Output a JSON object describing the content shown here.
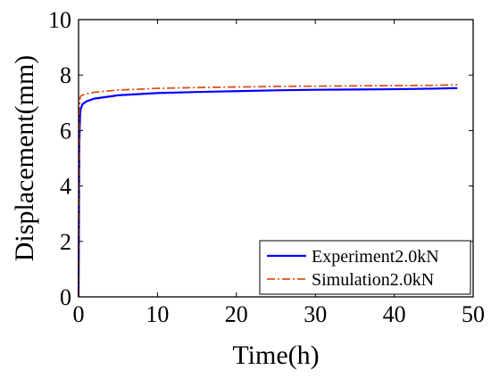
{
  "chart_data": {
    "type": "line",
    "title": "",
    "xlabel": "Time(h)",
    "ylabel": "Displacement(mm)",
    "xlim": [
      0,
      50
    ],
    "ylim": [
      0,
      10
    ],
    "xticks": [
      0,
      10,
      20,
      30,
      40,
      50
    ],
    "yticks": [
      0,
      2,
      4,
      6,
      8,
      10
    ],
    "grid": false,
    "legend_position": "bottom-right",
    "series": [
      {
        "name": "Experiment2.0kN",
        "color": "#0000ff",
        "style": "solid",
        "x": [
          0,
          0.05,
          0.1,
          0.2,
          0.3,
          0.5,
          1,
          2,
          5,
          10,
          15,
          20,
          25,
          30,
          35,
          40,
          45,
          48
        ],
        "y": [
          0,
          2.5,
          5.5,
          6.6,
          6.8,
          6.95,
          7.05,
          7.15,
          7.27,
          7.35,
          7.39,
          7.42,
          7.45,
          7.47,
          7.48,
          7.49,
          7.51,
          7.53
        ]
      },
      {
        "name": "Simulation2.0kN",
        "color": "#d95319",
        "style": "dashdot",
        "x": [
          0,
          0.05,
          0.1,
          0.2,
          0.3,
          0.5,
          1,
          2,
          5,
          10,
          15,
          20,
          25,
          30,
          35,
          40,
          45,
          48
        ],
        "y": [
          0,
          3.5,
          6.8,
          7.2,
          7.25,
          7.28,
          7.32,
          7.38,
          7.46,
          7.52,
          7.55,
          7.57,
          7.59,
          7.6,
          7.61,
          7.62,
          7.63,
          7.65
        ]
      }
    ]
  }
}
